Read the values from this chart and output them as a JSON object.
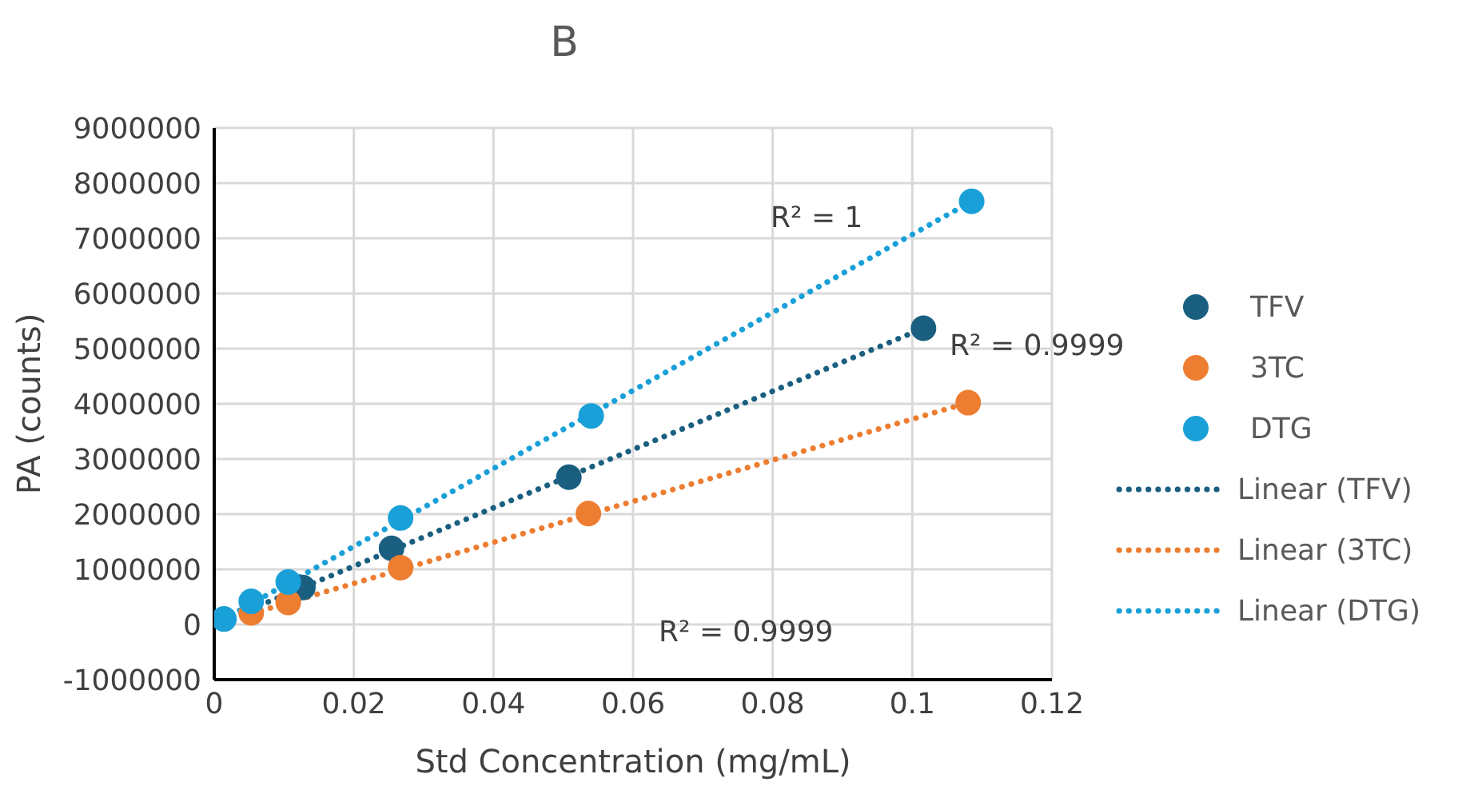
{
  "chart_data": {
    "type": "scatter",
    "title": "B",
    "xlabel": "Std Concentration (mg/mL)",
    "ylabel": "PA (counts)",
    "xlim": [
      0,
      0.12
    ],
    "xticks": [
      0,
      0.02,
      0.04,
      0.06,
      0.08,
      0.1,
      0.12
    ],
    "ylim": [
      -1000000,
      9000000
    ],
    "yticks": [
      -1000000,
      0,
      1000000,
      2000000,
      3000000,
      4000000,
      5000000,
      6000000,
      7000000,
      8000000,
      9000000
    ],
    "grid": true,
    "legend": "right",
    "marker": "circle",
    "series": [
      {
        "name": "TFV",
        "color": "#1a5f80",
        "x": [
          0.0127,
          0.0254,
          0.0508,
          0.1016
        ],
        "values": [
          670000,
          1380000,
          2670000,
          5370000
        ]
      },
      {
        "name": "3TC",
        "color": "#ed7d31",
        "x": [
          0.0053,
          0.0106,
          0.0267,
          0.0536,
          0.108
        ],
        "values": [
          210000,
          400000,
          1030000,
          2010000,
          4020000
        ]
      },
      {
        "name": "DTG",
        "color": "#1aa0d8",
        "x": [
          0.0014,
          0.0053,
          0.0106,
          0.0267,
          0.054,
          0.1085
        ],
        "values": [
          100000,
          420000,
          770000,
          1930000,
          3780000,
          7670000
        ]
      },
      {
        "name": "Linear (TFV)",
        "type": "line",
        "marker": "none",
        "line_style": "dotted",
        "color": "#1a5f80",
        "x": [
          0,
          0.1016
        ],
        "values": [
          0,
          5370000
        ]
      },
      {
        "name": "Linear (3TC)",
        "type": "line",
        "marker": "none",
        "line_style": "dotted",
        "color": "#ed7d31",
        "x": [
          0,
          0.108
        ],
        "values": [
          0,
          4020000
        ]
      },
      {
        "name": "Linear (DTG)",
        "type": "line",
        "marker": "none",
        "line_style": "dotted",
        "color": "#1aa0d8",
        "x": [
          0,
          0.1085
        ],
        "values": [
          0,
          7670000
        ]
      }
    ],
    "annotations": [
      "R² = 1",
      "R² = 0.9999",
      "R² = 0.9999"
    ]
  }
}
